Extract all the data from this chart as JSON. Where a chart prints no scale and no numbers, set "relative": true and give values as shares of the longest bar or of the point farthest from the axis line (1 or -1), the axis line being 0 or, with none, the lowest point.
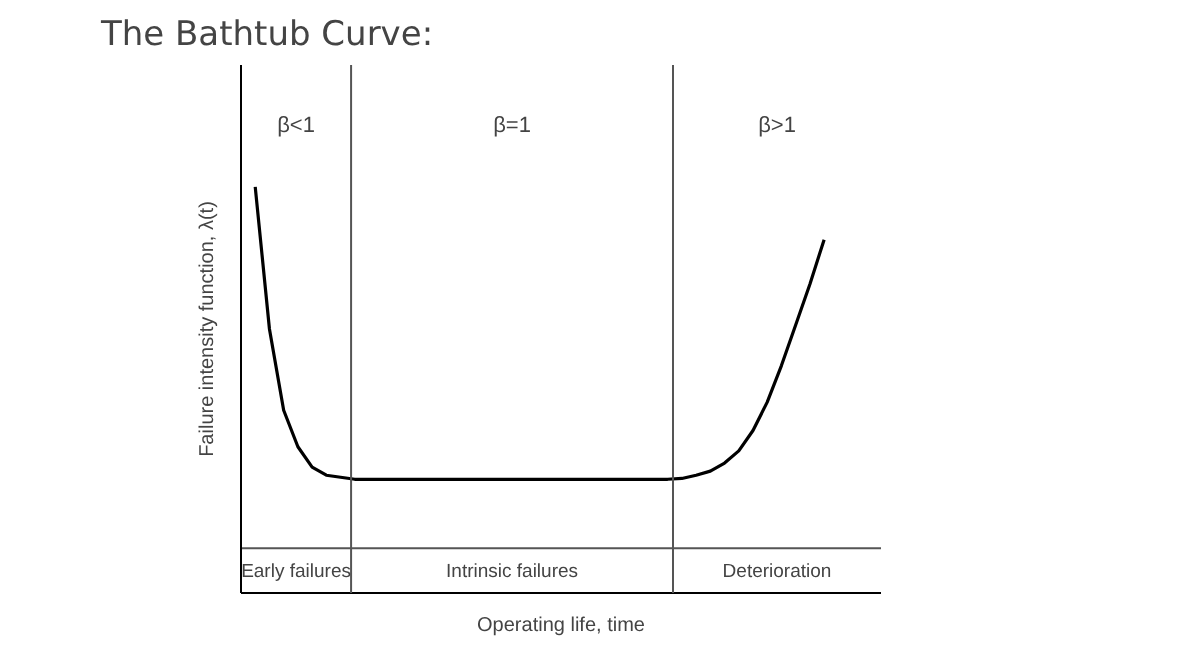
{
  "chart_data": {
    "type": "line",
    "title": "The Bathtub  Curve:",
    "xlabel": "Operating life, time",
    "ylabel": "Failure intensity function, λ(t)",
    "relative": true,
    "color": "#000000",
    "categories": [
      null,
      null,
      null,
      null,
      null,
      null,
      null,
      null,
      null,
      null,
      null,
      null,
      null,
      null,
      null,
      null,
      null,
      null,
      null,
      null,
      null,
      null,
      null,
      null,
      null,
      null,
      null,
      null,
      null,
      null,
      null,
      null,
      null,
      null,
      null,
      null,
      null,
      null,
      null,
      null,
      null
    ],
    "values": [
      1.0,
      0.65,
      0.45,
      0.36,
      0.31,
      0.29,
      0.285,
      0.28,
      0.28,
      0.28,
      0.28,
      0.28,
      0.28,
      0.28,
      0.28,
      0.28,
      0.28,
      0.28,
      0.28,
      0.28,
      0.28,
      0.28,
      0.28,
      0.28,
      0.28,
      0.28,
      0.28,
      0.28,
      0.28,
      0.28,
      0.282,
      0.29,
      0.3,
      0.32,
      0.35,
      0.4,
      0.47,
      0.56,
      0.66,
      0.76,
      0.87
    ],
    "annotations": [
      "β<1",
      "β=1",
      "β>1",
      "Early failures",
      "Intrinsic failures",
      "Deterioration"
    ]
  }
}
